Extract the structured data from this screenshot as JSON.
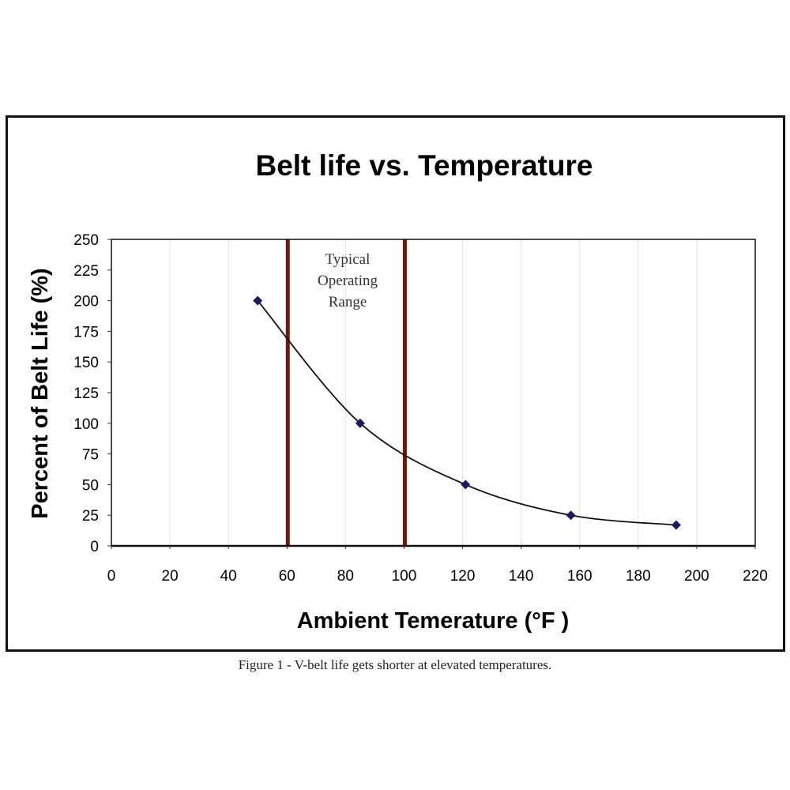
{
  "chart_data": {
    "type": "scatter",
    "title": "Belt life vs. Temperature",
    "xlabel": "Ambient Temerature (°F )",
    "ylabel": "Percent of Belt Life (%)",
    "xlim": [
      0,
      220
    ],
    "ylim": [
      0,
      250
    ],
    "xticks": [
      0,
      20,
      40,
      60,
      80,
      100,
      120,
      140,
      160,
      180,
      200,
      220
    ],
    "yticks": [
      0,
      25,
      50,
      75,
      100,
      125,
      150,
      175,
      200,
      225,
      250
    ],
    "grid": "vertical",
    "series": [
      {
        "name": "Belt life",
        "x": [
          50,
          85,
          121,
          157,
          193
        ],
        "y": [
          200,
          100,
          50,
          25,
          17
        ],
        "line": "smooth",
        "marker": "diamond",
        "color": "#1a1a5a"
      }
    ],
    "reference_lines": [
      {
        "x": 60,
        "color": "#6b1a10"
      },
      {
        "x": 100,
        "color": "#6b1a10"
      }
    ],
    "annotation": {
      "lines": [
        "Typical",
        "Operating",
        "Range"
      ],
      "x": 80,
      "y": 225
    }
  },
  "caption": "Figure 1 - V-belt life gets shorter at elevated temperatures."
}
